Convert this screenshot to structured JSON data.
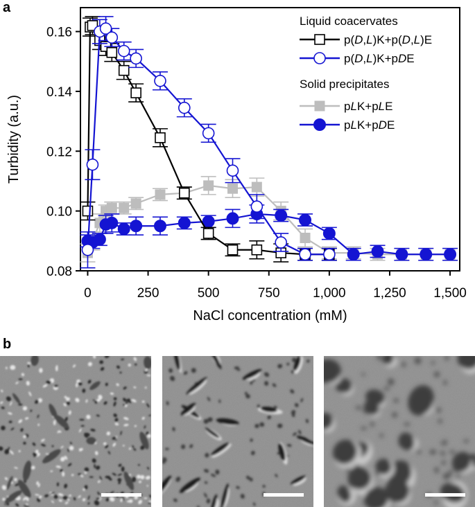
{
  "panel_a_label": "a",
  "panel_b_label": "b",
  "chart_data": {
    "type": "line",
    "xlabel": "NaCl concentration (mM)",
    "ylabel": "Turbidity (a.u.)",
    "xlim": [
      -30,
      1540
    ],
    "ylim": [
      0.08,
      0.168
    ],
    "x_ticks": [
      0,
      250,
      500,
      750,
      1000,
      1250,
      1500
    ],
    "x_tick_labels": [
      "0",
      "250",
      "500",
      "750",
      "1,000",
      "1,250",
      "1,500"
    ],
    "y_ticks": [
      0.08,
      0.1,
      0.12,
      0.14,
      0.16
    ],
    "y_tick_labels": [
      "0.08",
      "0.10",
      "0.12",
      "0.14",
      "0.16"
    ],
    "grid": false,
    "legend_position": "top-right",
    "legend_groups": [
      {
        "title": "Liquid coacervates",
        "series_indices": [
          0,
          1
        ]
      },
      {
        "title": "Solid precipitates",
        "series_indices": [
          2,
          3
        ]
      }
    ],
    "series": [
      {
        "name": "p(D,L)K+p(D,L)E",
        "color": "#000000",
        "marker": "open-square",
        "x": [
          0,
          10,
          20,
          50,
          75,
          100,
          150,
          200,
          300,
          400,
          500,
          600,
          700,
          800,
          900,
          1000
        ],
        "y": [
          0.1,
          0.1615,
          0.162,
          0.157,
          0.155,
          0.153,
          0.147,
          0.1395,
          0.1245,
          0.106,
          0.0925,
          0.087,
          0.087,
          0.086,
          0.0855,
          0.0855
        ],
        "err": [
          0.003,
          0.003,
          0.003,
          0.003,
          0.003,
          0.003,
          0.003,
          0.003,
          0.003,
          0.002,
          0.002,
          0.002,
          0.003,
          0.003,
          0.002,
          0.002
        ]
      },
      {
        "name": "p(D,L)K+pDE",
        "color": "#1414d2",
        "marker": "open-circle",
        "x": [
          0,
          20,
          50,
          75,
          100,
          150,
          200,
          300,
          400,
          500,
          600,
          700,
          800,
          900,
          1000
        ],
        "y": [
          0.087,
          0.1155,
          0.16,
          0.161,
          0.158,
          0.1535,
          0.151,
          0.1435,
          0.1345,
          0.126,
          0.1135,
          0.1015,
          0.0895,
          0.0855,
          0.0855
        ],
        "err": [
          0.006,
          0.005,
          0.004,
          0.004,
          0.003,
          0.003,
          0.003,
          0.003,
          0.003,
          0.003,
          0.004,
          0.004,
          0.003,
          0.002,
          0.002
        ]
      },
      {
        "name": "pLK+pLE",
        "color": "#bdbdbd",
        "marker": "filled-square",
        "x": [
          0,
          20,
          50,
          75,
          100,
          150,
          200,
          300,
          400,
          500,
          600,
          700,
          800,
          900,
          1000,
          1100,
          1200,
          1300,
          1400,
          1500
        ],
        "y": [
          0.086,
          0.09,
          0.096,
          0.1,
          0.101,
          0.101,
          0.1025,
          0.1055,
          0.106,
          0.1085,
          0.1075,
          0.108,
          0.1,
          0.091,
          0.086,
          0.086,
          0.0855,
          0.0855,
          0.0855,
          0.0855
        ],
        "err": [
          0.003,
          0.003,
          0.003,
          0.002,
          0.002,
          0.002,
          0.002,
          0.002,
          0.002,
          0.003,
          0.003,
          0.003,
          0.003,
          0.003,
          0.002,
          0.002,
          0.002,
          0.002,
          0.002,
          0.002
        ]
      },
      {
        "name": "pLK+pDE",
        "color": "#1414d2",
        "marker": "filled-circle",
        "x": [
          0,
          20,
          50,
          75,
          100,
          150,
          200,
          300,
          400,
          500,
          600,
          700,
          800,
          900,
          1000,
          1100,
          1200,
          1300,
          1400,
          1500
        ],
        "y": [
          0.09,
          0.0895,
          0.0905,
          0.0955,
          0.096,
          0.094,
          0.095,
          0.095,
          0.096,
          0.0965,
          0.0975,
          0.099,
          0.0985,
          0.097,
          0.0925,
          0.0855,
          0.0865,
          0.0855,
          0.0855,
          0.0855
        ],
        "err": [
          0.002,
          0.002,
          0.002,
          0.003,
          0.003,
          0.002,
          0.003,
          0.003,
          0.002,
          0.002,
          0.003,
          0.003,
          0.002,
          0.002,
          0.002,
          0.002,
          0.002,
          0.002,
          0.002,
          0.002
        ]
      }
    ]
  },
  "micrographs": [
    {
      "kind": "precipitate-network"
    },
    {
      "kind": "precipitate-fragments"
    },
    {
      "kind": "coacervate-droplets"
    }
  ]
}
